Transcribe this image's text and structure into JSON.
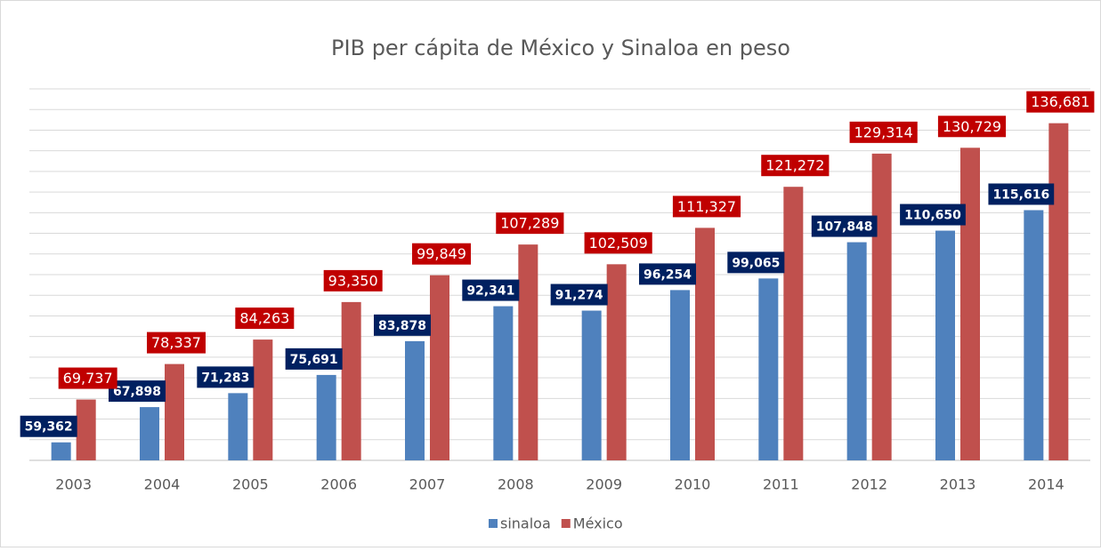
{
  "chart_data": {
    "type": "bar",
    "title": "PIB per cápita de México y Sinaloa en peso",
    "categories": [
      "2003",
      "2004",
      "2005",
      "2006",
      "2007",
      "2008",
      "2009",
      "2010",
      "2011",
      "2012",
      "2013",
      "2014"
    ],
    "series": [
      {
        "name": "sinaloa",
        "color": "#4f81bd",
        "label_color": "#002060",
        "values": [
          59362,
          67898,
          71283,
          75691,
          83878,
          92341,
          91274,
          96254,
          99065,
          107848,
          110650,
          115616
        ],
        "value_labels": [
          "59,362",
          "67,898",
          "71,283",
          "75,691",
          "83,878",
          "92,341",
          "91,274",
          "96,254",
          "99,065",
          "107,848",
          "110,650",
          "115,616"
        ]
      },
      {
        "name": "México",
        "color": "#c0504d",
        "label_color": "#c00000",
        "values": [
          69737,
          78337,
          84263,
          93350,
          99849,
          107289,
          102509,
          111327,
          121272,
          129314,
          130729,
          136681
        ],
        "value_labels": [
          "69,737",
          "78,337",
          "84,263",
          "93,350",
          "99,849",
          "107,289",
          "102,509",
          "111,327",
          "121,272",
          "129,314",
          "130,729",
          "136,681"
        ]
      }
    ],
    "ylim": [
      55000,
      145000
    ],
    "yticks": [
      55000,
      60000,
      65000,
      70000,
      75000,
      80000,
      85000,
      90000,
      95000,
      100000,
      105000,
      110000,
      115000,
      120000,
      125000,
      130000,
      135000,
      140000,
      145000
    ],
    "grid": true,
    "legend": "bottom"
  }
}
